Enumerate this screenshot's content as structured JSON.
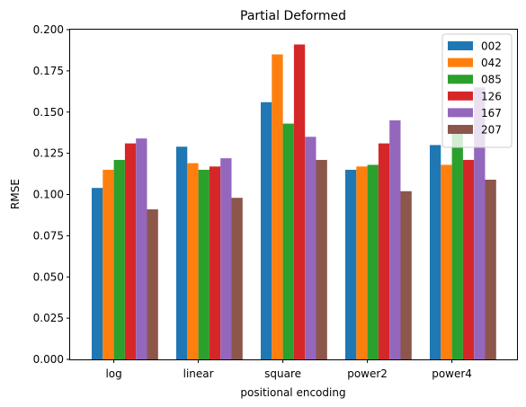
{
  "chart_data": {
    "type": "bar",
    "title": "Partial Deformed",
    "xlabel": "positional encoding",
    "ylabel": "RMSE",
    "ylim": [
      0,
      0.2
    ],
    "yticks": [
      "0.000",
      "0.025",
      "0.050",
      "0.075",
      "0.100",
      "0.125",
      "0.150",
      "0.175",
      "0.200"
    ],
    "categories": [
      "log",
      "linear",
      "square",
      "power2",
      "power4"
    ],
    "grid": false,
    "legend": "top-right",
    "series": [
      {
        "name": "002",
        "color": "#1f77b4",
        "values": [
          0.104,
          0.129,
          0.156,
          0.115,
          0.13
        ]
      },
      {
        "name": "042",
        "color": "#ff7f0e",
        "values": [
          0.115,
          0.119,
          0.185,
          0.117,
          0.118
        ]
      },
      {
        "name": "085",
        "color": "#2ca02c",
        "values": [
          0.121,
          0.115,
          0.143,
          0.118,
          0.137
        ]
      },
      {
        "name": "126",
        "color": "#d62728",
        "values": [
          0.131,
          0.117,
          0.191,
          0.131,
          0.121
        ]
      },
      {
        "name": "167",
        "color": "#9467bd",
        "values": [
          0.134,
          0.122,
          0.135,
          0.145,
          0.165
        ]
      },
      {
        "name": "207",
        "color": "#8c564b",
        "values": [
          0.091,
          0.098,
          0.121,
          0.102,
          0.109
        ]
      }
    ]
  }
}
